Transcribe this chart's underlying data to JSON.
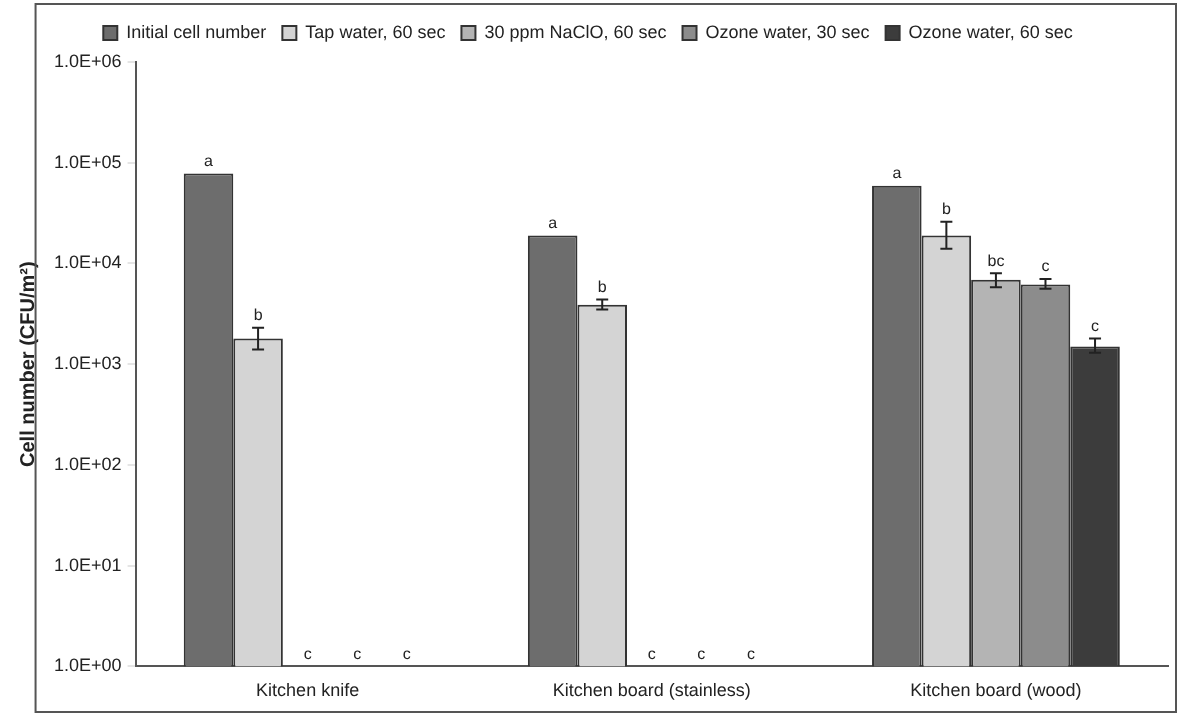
{
  "chart_data": {
    "type": "bar",
    "ylabel": "Cell number (CFU/m²)",
    "log": true,
    "grid": false,
    "legend": "top",
    "categories": [
      "Kitchen knife",
      "Kitchen board (stainless)",
      "Kitchen board (wood)"
    ],
    "ylim": [
      1,
      1000000
    ],
    "yticks": [
      {
        "value": 1,
        "label": "1.0E+00"
      },
      {
        "value": 10,
        "label": "1.0E+01"
      },
      {
        "value": 100,
        "label": "1.0E+02"
      },
      {
        "value": 1000,
        "label": "1.0E+03"
      },
      {
        "value": 10000,
        "label": "1.0E+04"
      },
      {
        "value": 100000,
        "label": "1.0E+05"
      },
      {
        "value": 1000000,
        "label": "1.0E+06"
      }
    ],
    "series": [
      {
        "name": "Initial cell number",
        "color": "#6d6d6d",
        "values": [
          78000,
          19000,
          59000
        ],
        "value_labels": [
          "a",
          "a",
          "a"
        ]
      },
      {
        "name": "Tap water, 60 sec",
        "color": "#d4d4d4",
        "values": [
          1800,
          3900,
          19000
        ],
        "errors": [
          [
            1400,
            2300
          ],
          [
            3500,
            4400
          ],
          [
            14000,
            26000
          ]
        ],
        "value_labels": [
          "b",
          "b",
          "b"
        ]
      },
      {
        "name": "30 ppm NaClO, 60 sec",
        "color": "#b4b4b4",
        "values": [
          null,
          null,
          6900
        ],
        "errors": [
          null,
          null,
          [
            5800,
            8000
          ]
        ],
        "value_labels": [
          "c",
          "c",
          "bc"
        ]
      },
      {
        "name": "Ozone water, 30 sec",
        "color": "#8c8c8c",
        "values": [
          null,
          null,
          6200
        ],
        "errors": [
          null,
          null,
          [
            5600,
            7000
          ]
        ],
        "value_labels": [
          "c",
          "c",
          "c"
        ]
      },
      {
        "name": "Ozone water, 60 sec",
        "color": "#3c3c3c",
        "values": [
          null,
          null,
          1500
        ],
        "errors": [
          null,
          null,
          [
            1300,
            1800
          ]
        ],
        "value_labels": [
          "c",
          "c",
          "c"
        ]
      }
    ]
  }
}
